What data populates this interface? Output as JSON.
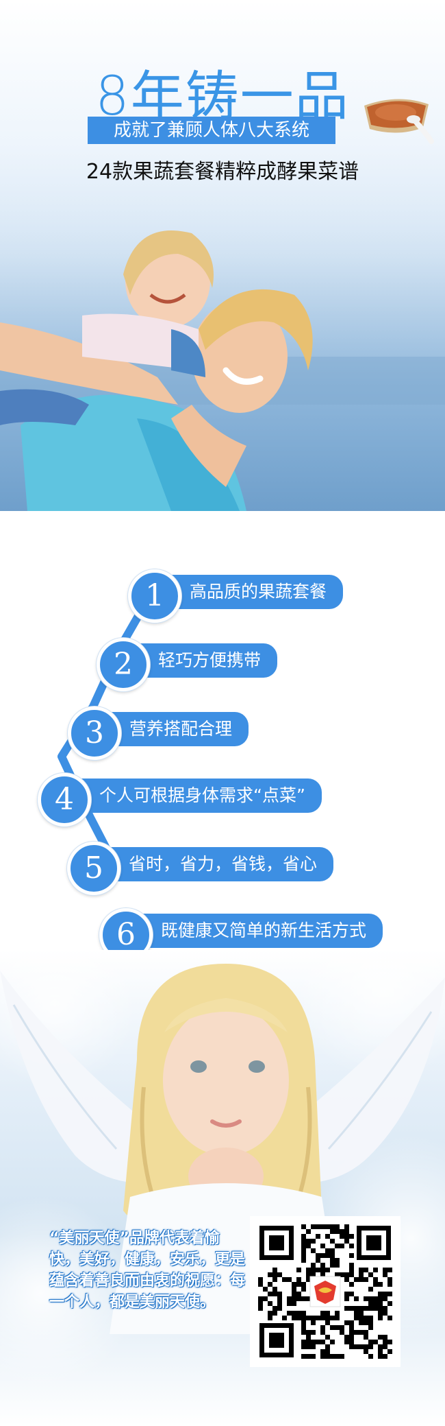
{
  "hero": {
    "title": "8年铸一品",
    "ribbon": "成就了兼顾人体八大系统",
    "subtitle": "24款果蔬套餐精粹成酵果菜谱"
  },
  "features": [
    {
      "num": "1",
      "label": "高品质的果蔬套餐"
    },
    {
      "num": "2",
      "label": "轻巧方便携带"
    },
    {
      "num": "3",
      "label": "营养搭配合理"
    },
    {
      "num": "4",
      "label": "个人可根据身体需求“点菜”"
    },
    {
      "num": "5",
      "label": "省时，省力，省钱，省心"
    },
    {
      "num": "6",
      "label": "既健康又简单的新生活方式"
    }
  ],
  "brand": {
    "text": "“美丽天使”品牌代表着愉快，美好，健康，安乐，更是蕴含着善良而由衷的祝愿：每一个人，都是美丽天使。"
  },
  "colors": {
    "accent": "#3d8fe3",
    "title": "#3a95e6"
  }
}
